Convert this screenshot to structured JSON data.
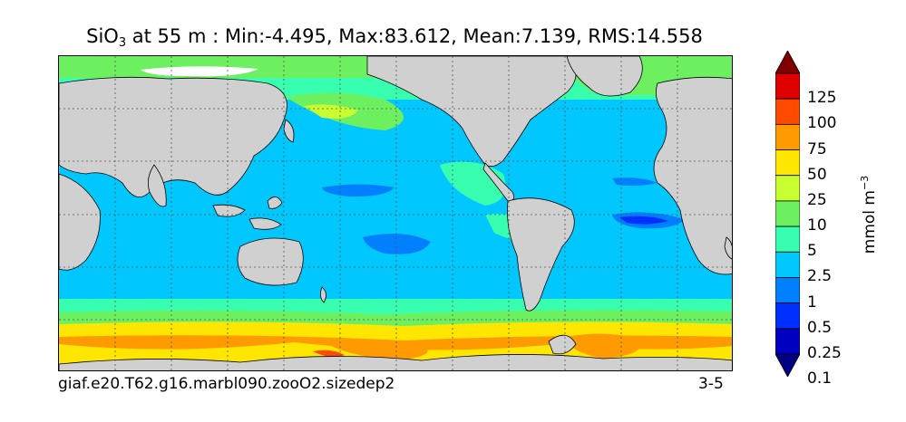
{
  "title": {
    "species": "SiO",
    "subscript": "3",
    "rest": " at 55 m : Min:-4.495, Max:83.612, Mean:7.139, RMS:14.558"
  },
  "footer": {
    "run": "giaf.e20.T62.g16.marbl090.zooO2.sizedep2",
    "period": "3-5"
  },
  "colorbar": {
    "unit_text": "mmol m",
    "unit_sup": "−3",
    "levels": [
      "125",
      "100",
      "75",
      "50",
      "25",
      "10",
      "5",
      "2.5",
      "1",
      "0.5",
      "0.25",
      "0.1"
    ],
    "colors": [
      "#800000",
      "#e00000",
      "#ff4a00",
      "#ff9a00",
      "#ffe600",
      "#c8ff30",
      "#6cf060",
      "#38ffb0",
      "#00c8ff",
      "#0080ff",
      "#0030ff",
      "#0000c0",
      "#000080"
    ]
  },
  "map": {
    "land_color": "#d0d0d0",
    "ice_color": "#ffffff"
  }
}
